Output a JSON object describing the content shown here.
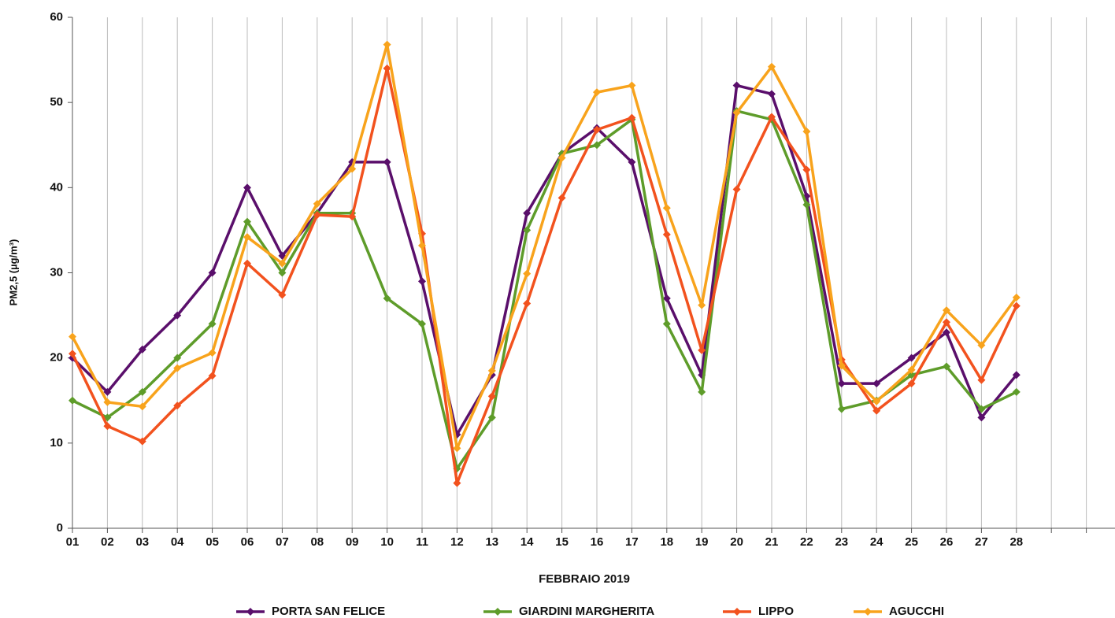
{
  "chart_data": {
    "type": "line",
    "y_label": "PM2,5 (µg/m³)",
    "x_label": "FEBBRAIO 2019",
    "categories": [
      "01",
      "02",
      "03",
      "04",
      "05",
      "06",
      "07",
      "08",
      "09",
      "10",
      "11",
      "12",
      "13",
      "14",
      "15",
      "16",
      "17",
      "18",
      "19",
      "20",
      "21",
      "22",
      "23",
      "24",
      "25",
      "26",
      "27",
      "28",
      null,
      null
    ],
    "series": [
      {
        "name": "PORTA SAN FELICE",
        "color": "#5a0f6b",
        "values": [
          20,
          16,
          21,
          25,
          30,
          40,
          32,
          37,
          43,
          43,
          29,
          11,
          18,
          37,
          44,
          47,
          43,
          27,
          18,
          52,
          51,
          39,
          17,
          17,
          20,
          23,
          13,
          18,
          null,
          null
        ]
      },
      {
        "name": "GIARDINI MARGHERITA",
        "color": "#5e9c2a",
        "values": [
          15,
          13,
          16,
          20,
          24,
          36,
          30,
          37,
          37,
          27,
          24,
          7,
          13,
          35,
          44,
          45,
          48,
          24,
          16,
          49,
          48,
          38,
          14,
          15,
          18,
          19,
          14,
          16,
          null,
          null
        ]
      },
      {
        "name": "LIPPO",
        "color": "#f2521e",
        "values": [
          20.5,
          12,
          10.2,
          14.4,
          17.9,
          31.1,
          27.4,
          36.8,
          36.6,
          54,
          34.6,
          5.3,
          15.5,
          26.4,
          38.8,
          46.8,
          48.2,
          34.5,
          20.9,
          39.8,
          48.3,
          42.1,
          19.8,
          13.8,
          17,
          24.2,
          17.4,
          26.1,
          null,
          null
        ]
      },
      {
        "name": "AGUCCHI",
        "color": "#f8a31c",
        "values": [
          22.5,
          14.8,
          14.3,
          18.8,
          20.6,
          34.2,
          31.1,
          38.1,
          42.2,
          56.8,
          33.2,
          9.4,
          18.5,
          29.9,
          43.5,
          51.2,
          52,
          37.6,
          26.2,
          48.8,
          54.2,
          46.6,
          19.1,
          14.9,
          18.6,
          25.6,
          21.5,
          27.1,
          null,
          null
        ]
      }
    ],
    "ylim": [
      0,
      60
    ],
    "yticks": [
      0,
      10,
      20,
      30,
      40,
      50,
      60
    ],
    "grid": true
  }
}
